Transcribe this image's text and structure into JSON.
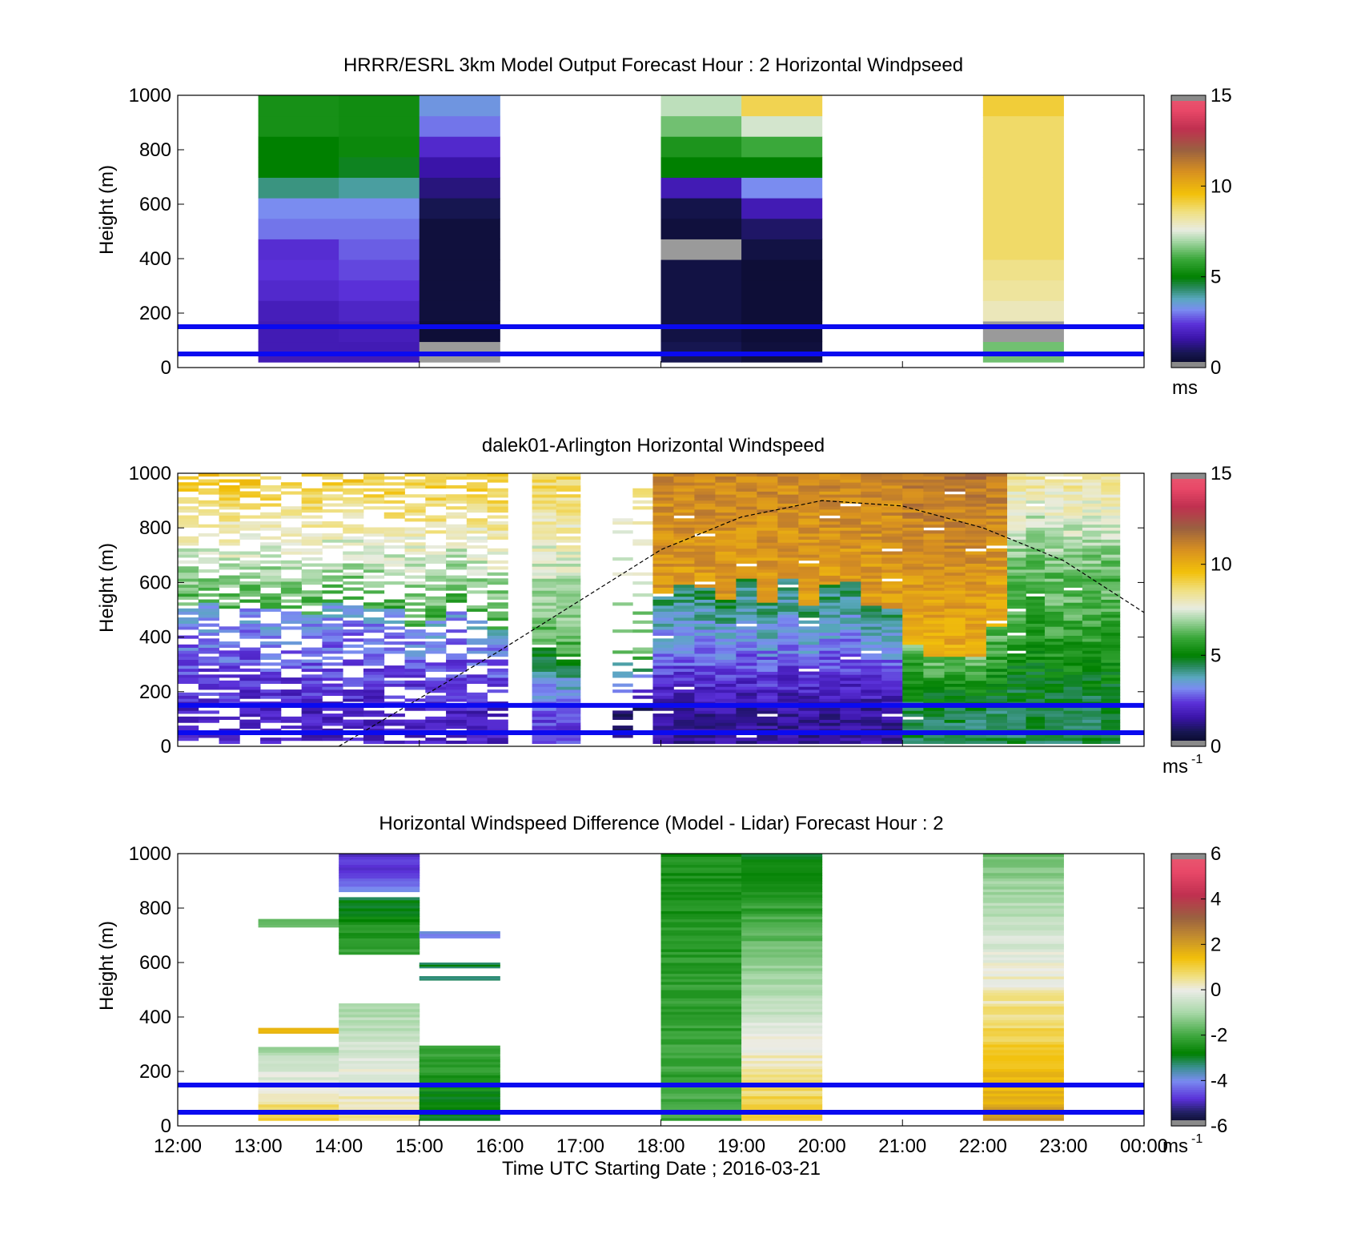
{
  "chart_data": [
    {
      "type": "heatmap",
      "title": "HRRR/ESRL 3km Model Output   Forecast Hour : 2 Horizontal Windpseed",
      "ylabel": "Height (m)",
      "ylim": [
        0,
        1000
      ],
      "yticks": [
        "0",
        "200",
        "400",
        "600",
        "800",
        "1000"
      ],
      "xlim": [
        "12:00",
        "00:00"
      ],
      "xtick_labels": [],
      "colorbar": {
        "min": 0,
        "max": 15,
        "ticks": [
          "0",
          "5",
          "10",
          "15"
        ],
        "unit": "ms",
        "unit_sup": "",
        "kind": "speed"
      },
      "reference_lines_m": [
        150,
        50
      ],
      "columns": [
        {
          "start": 13,
          "end": 14,
          "bottom": 20,
          "top": 1000,
          "profile": [
            1.8,
            1.8,
            1.9,
            2.2,
            2.4,
            2.3,
            3.0,
            3.2,
            4.2,
            5.0,
            5.0,
            5.4,
            5.4
          ]
        },
        {
          "start": 14,
          "end": 15,
          "bottom": 20,
          "top": 1000,
          "profile": [
            1.8,
            1.9,
            2.1,
            2.4,
            2.6,
            2.8,
            3.0,
            3.2,
            4.0,
            4.8,
            5.2,
            5.3,
            5.3
          ]
        },
        {
          "start": 15,
          "end": 16,
          "bottom": 20,
          "top": 1000,
          "profile": [
            -1,
            0.4,
            0.5,
            0.5,
            0.5,
            0.5,
            0.5,
            0.8,
            1.2,
            1.6,
            2.2,
            3.0,
            3.4
          ]
        },
        {
          "start": 18,
          "end": 19,
          "bottom": 20,
          "top": 1000,
          "profile": [
            0.8,
            0.6,
            0.6,
            0.6,
            0.6,
            -1,
            0.5,
            0.7,
            1.8,
            5.0,
            5.5,
            6.5,
            7.2
          ]
        },
        {
          "start": 19,
          "end": 20,
          "bottom": 20,
          "top": 1000,
          "profile": [
            0.5,
            0.4,
            0.4,
            0.4,
            0.4,
            0.6,
            1.0,
            1.8,
            3.2,
            5.0,
            6.0,
            7.4,
            9.0
          ]
        },
        {
          "start": 22,
          "end": 23,
          "bottom": 20,
          "top": 1000,
          "profile": [
            6.5,
            -1,
            8.0,
            8.3,
            8.5,
            8.8,
            8.8,
            8.8,
            8.8,
            8.8,
            8.8,
            8.8,
            9.2
          ]
        }
      ]
    },
    {
      "type": "heatmap",
      "title": "dalek01-Arlington  Horizontal Windspeed",
      "ylabel": "Height (m)",
      "ylim": [
        0,
        1000
      ],
      "yticks": [
        "0",
        "200",
        "400",
        "600",
        "800",
        "1000"
      ],
      "xlim": [
        "12:00",
        "00:00"
      ],
      "xtick_labels": [],
      "colorbar": {
        "min": 0,
        "max": 15,
        "ticks": [
          "0",
          "5",
          "10",
          "15"
        ],
        "unit": "ms",
        "unit_sup": "-1",
        "kind": "speed"
      },
      "reference_lines_m": [
        150,
        50
      ],
      "segments": [
        {
          "start": 12.0,
          "end": 16.1,
          "low": 2.0,
          "mid": 3.5,
          "high": 6.0,
          "top_speed": 9.5,
          "transition": 480,
          "top": 1000,
          "gaps": 0.35
        },
        {
          "start": 16.4,
          "end": 17.0,
          "low": 2.5,
          "mid": 5.0,
          "high": 6.0,
          "top_speed": 9.0,
          "transition": 300,
          "top": 1000,
          "gaps": 0.05
        },
        {
          "start": 17.4,
          "end": 17.9,
          "low": 1.0,
          "mid": 4.5,
          "high": 6.0,
          "top_speed": 9.0,
          "transition": 300,
          "top": 1000,
          "gaps": 0.75
        },
        {
          "start": 17.9,
          "end": 21.0,
          "low": 1.5,
          "mid": 4.5,
          "high": 10.5,
          "top_speed": 11.0,
          "transition": 560,
          "top": 1000,
          "gaps": 0.02
        },
        {
          "start": 21.0,
          "end": 22.3,
          "low": 4.5,
          "mid": 6.5,
          "high": 10.0,
          "top_speed": 11.5,
          "transition": 380,
          "top": 1000,
          "gaps": 0.02
        },
        {
          "start": 22.3,
          "end": 23.7,
          "low": 4.5,
          "mid": 6.5,
          "high": 6.0,
          "top_speed": 8.5,
          "transition": 600,
          "top": 1000,
          "gaps": 0.02
        }
      ],
      "curve": {
        "style": "dashed",
        "x": [
          14.0,
          16.0,
          18.0,
          19.0,
          20.0,
          21.0,
          22.0,
          23.0,
          24.0
        ],
        "y": [
          0,
          350,
          720,
          840,
          900,
          880,
          800,
          680,
          490
        ]
      }
    },
    {
      "type": "heatmap",
      "title": "Horizontal Windspeed Difference (Model - Lidar) Forecast Hour : 2",
      "xlabel": "Time UTC  Starting Date ; 2016-03-21",
      "ylabel": "Height (m)",
      "ylim": [
        0,
        1000
      ],
      "yticks": [
        "0",
        "200",
        "400",
        "600",
        "800",
        "1000"
      ],
      "xlim": [
        "12:00",
        "00:00"
      ],
      "xtick_labels": [
        "12:00",
        "13:00",
        "14:00",
        "15:00",
        "16:00",
        "17:00",
        "18:00",
        "19:00",
        "20:00",
        "21:00",
        "22:00",
        "23:00",
        "00:00"
      ],
      "colorbar": {
        "min": -6,
        "max": 6,
        "ticks": [
          "-6",
          "-4",
          "-2",
          "0",
          "2",
          "4",
          "6"
        ],
        "unit": "ms",
        "unit_sup": "-1",
        "kind": "diff"
      },
      "reference_lines_m": [
        150,
        50
      ],
      "blocks": [
        {
          "start": 13,
          "end": 14,
          "bottom": 20,
          "top": 290,
          "v0": 1.0,
          "v1": -1.0
        },
        {
          "start": 13,
          "end": 14,
          "bottom": 340,
          "top": 360,
          "v0": 1.6,
          "v1": 1.6
        },
        {
          "start": 13,
          "end": 14,
          "bottom": 730,
          "top": 760,
          "v0": -1.6,
          "v1": -1.6
        },
        {
          "start": 14,
          "end": 15,
          "bottom": 20,
          "top": 450,
          "v0": 0.5,
          "v1": -1.0
        },
        {
          "start": 14,
          "end": 15,
          "bottom": 630,
          "top": 840,
          "v0": -2.0,
          "v1": -3.0
        },
        {
          "start": 14,
          "end": 15,
          "bottom": 860,
          "top": 1000,
          "v0": -4.0,
          "v1": -5.0
        },
        {
          "start": 15,
          "end": 16,
          "bottom": 20,
          "top": 295,
          "v0": -3.0,
          "v1": -2.0
        },
        {
          "start": 15,
          "end": 16,
          "bottom": 535,
          "top": 550,
          "v0": -3.3,
          "v1": -3.3
        },
        {
          "start": 15,
          "end": 16,
          "bottom": 580,
          "top": 600,
          "v0": -3.0,
          "v1": -3.0
        },
        {
          "start": 15,
          "end": 16,
          "bottom": 690,
          "top": 715,
          "v0": -4.0,
          "v1": -4.0
        },
        {
          "start": 18,
          "end": 19,
          "bottom": 20,
          "top": 1000,
          "v0": -2.0,
          "v1": -2.5
        },
        {
          "start": 19,
          "end": 20,
          "bottom": 20,
          "top": 1000,
          "v0": 1.2,
          "v1": -3.0
        },
        {
          "start": 22,
          "end": 23,
          "bottom": 20,
          "top": 1000,
          "v0": 2.0,
          "v1": -1.5
        }
      ]
    }
  ]
}
